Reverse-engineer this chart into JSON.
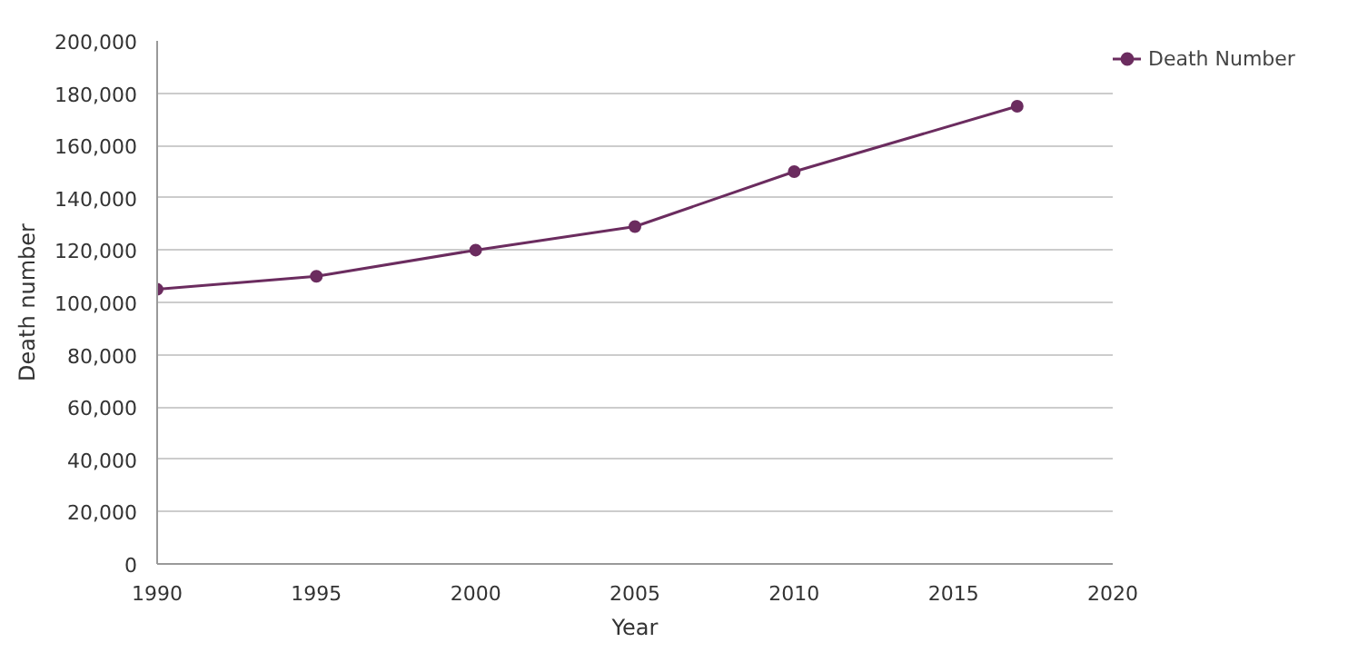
{
  "chart_data": {
    "type": "line",
    "xlabel": "Year",
    "ylabel": "Death number",
    "x": [
      1990,
      1995,
      2000,
      2005,
      2010,
      2017
    ],
    "series": [
      {
        "name": "Death Number",
        "color": "#6b2c5f",
        "values": [
          105000,
          110000,
          120000,
          129000,
          150000,
          175000
        ]
      }
    ],
    "xlim": [
      1990,
      2020
    ],
    "xticks": [
      1990,
      1995,
      2000,
      2005,
      2010,
      2015,
      2020
    ],
    "ylim": [
      0,
      200000
    ],
    "yticks": [
      {
        "value": 0,
        "label": "0"
      },
      {
        "value": 20000,
        "label": "20,000"
      },
      {
        "value": 40000,
        "label": "40,000"
      },
      {
        "value": 60000,
        "label": "60,000"
      },
      {
        "value": 80000,
        "label": "80,000"
      },
      {
        "value": 100000,
        "label": "100,000"
      },
      {
        "value": 120000,
        "label": "120,000"
      },
      {
        "value": 140000,
        "label": "140,000"
      },
      {
        "value": 160000,
        "label": "160,000"
      },
      {
        "value": 180000,
        "label": "180,000"
      },
      {
        "value": 200000,
        "label": "200,000"
      }
    ],
    "grid": "y",
    "legend": "top right",
    "marker": "circle",
    "line_style": "solid"
  }
}
